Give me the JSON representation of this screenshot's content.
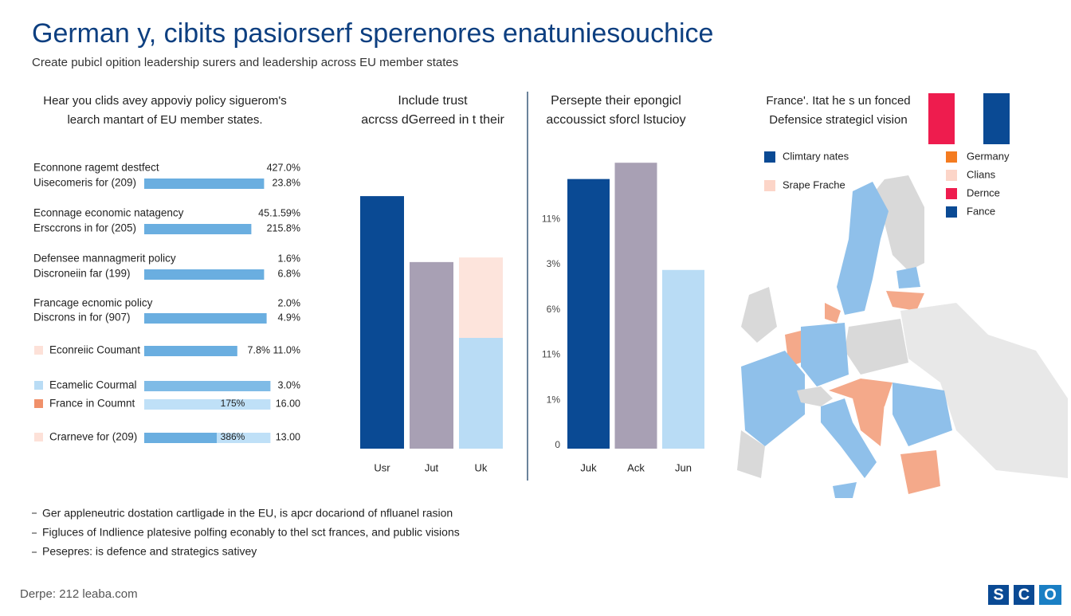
{
  "header": {
    "title": "German y, cibits pasiorserf sperenores enatuniesouchice",
    "subtitle": "Create pubicl opition leadership surers and leadership across EU member states"
  },
  "chart_data": [
    {
      "type": "hbarlist",
      "title": [
        "Hear you clids avey appoviy policy siguerom's",
        "learch mantart of EU member states."
      ],
      "rows": [
        {
          "label": "Econnone ragemt destfect",
          "value_label": "427.0%"
        },
        {
          "label": "Uisecomeris for (209)",
          "bars": [
            94
          ],
          "bar_colors": [
            "#6aaee0"
          ],
          "value_label": "23.8%"
        },
        {
          "label": "Econnage economic natagency",
          "value_label": "45.1.59%"
        },
        {
          "label": "Ersccrons in for (205)",
          "bars": [
            84
          ],
          "bar_colors": [
            "#6aaee0"
          ],
          "value_label": "215.8%"
        },
        {
          "label": "Defensee mannagmerit policy",
          "value_label": "1.6%"
        },
        {
          "label": "Discroneiin far (199)",
          "bars": [
            94
          ],
          "bar_colors": [
            "#6aaee0"
          ],
          "value_label": "6.8%"
        },
        {
          "label": "Francage ecnomic policy",
          "value_label": "2.0%"
        },
        {
          "label": "Discrons in for (907)",
          "bars": [
            96
          ],
          "bar_colors": [
            "#6aaee0"
          ],
          "value_label": "4.9%"
        },
        {
          "label": "Econreiic Coumant",
          "swatch": "#fde1d8",
          "bars": [
            73
          ],
          "bar_colors": [
            "#6aaee0"
          ],
          "value_label": "7.8% 11.0%"
        },
        {
          "label": "Ecamelic Courmal",
          "swatch": "#b9dcf5",
          "bars": [
            99
          ],
          "bar_colors": [
            "#7fbbe6"
          ],
          "value_label": "3.0%"
        },
        {
          "label": "France in Coumnt",
          "swatch": "#f0906a",
          "bars": [
            99
          ],
          "bar_colors": [
            "#bfe0f7"
          ],
          "inner_label": "175%",
          "value_label": "16.00"
        },
        {
          "label": "Crarneve for (209)",
          "swatch": "#fde1d8",
          "bars": [
            57,
            42
          ],
          "bar_colors": [
            "#6aaee0",
            "#bfe0f7"
          ],
          "inner_label": "386%",
          "value_label": "13.00"
        }
      ]
    },
    {
      "type": "bar",
      "title": [
        "Include trust",
        "acrcss dGerreed in t their"
      ],
      "categories": [
        "Usr",
        "Jut",
        "Uk"
      ],
      "series": [
        {
          "colors": [
            "#0a4a94",
            "#a8a0b4",
            "#b9dcf5"
          ],
          "values": [
            87.3,
            64.5,
            38.3
          ]
        },
        {
          "colors": [
            null,
            null,
            "#fde4dc"
          ],
          "values": [
            null,
            null,
            27.8
          ]
        }
      ],
      "ylim": [
        0,
        100
      ]
    },
    {
      "type": "bar",
      "title": [
        "Persepte their epongicl",
        "accoussict sforcl lstucioy"
      ],
      "categories": [
        "Juk",
        "Ack",
        "Jun"
      ],
      "series": [
        {
          "colors": [
            "#0a4a94",
            "#a8a0b4",
            "#b9dcf5"
          ],
          "values": [
            5.96,
            6.32,
            3.95
          ]
        }
      ],
      "ylim": [
        0,
        6.5
      ],
      "yticks": [
        0,
        {
          "value": 1,
          "label": "1%"
        },
        {
          "value": 2,
          "label": "11%"
        },
        {
          "value": 3,
          "label": "6%"
        },
        {
          "value": 4,
          "label": "3%"
        },
        {
          "value": 5,
          "label": "11%"
        }
      ]
    }
  ],
  "map": {
    "title": [
      "France'. Itat he s un fonced",
      "Defensice strategicl vision"
    ],
    "legend_left": [
      {
        "name": "Climtary nates",
        "color": "#0a4a94"
      },
      {
        "name": "Srape Frache",
        "color": "#fcd5c8"
      }
    ],
    "legend_right": [
      {
        "name": "Germany",
        "color": "#f47b20"
      },
      {
        "name": "Clians",
        "color": "#fcd5c8"
      },
      {
        "name": "Dernce",
        "color": "#ee1c4e"
      },
      {
        "name": "Fance",
        "color": "#0a4a94"
      }
    ]
  },
  "notes": [
    "Ger appleneutric dostation cartligade in the EU, is apcr docariond of nfluanel rasion",
    "Figluces of Indlience platesive polfing econably to thel sct frances, and public visions",
    "Pesepres: is defence and strategics sativey"
  ],
  "footer": {
    "source": "Derpe: 212 leaba.com",
    "logo": [
      "S",
      "C",
      "O"
    ]
  }
}
